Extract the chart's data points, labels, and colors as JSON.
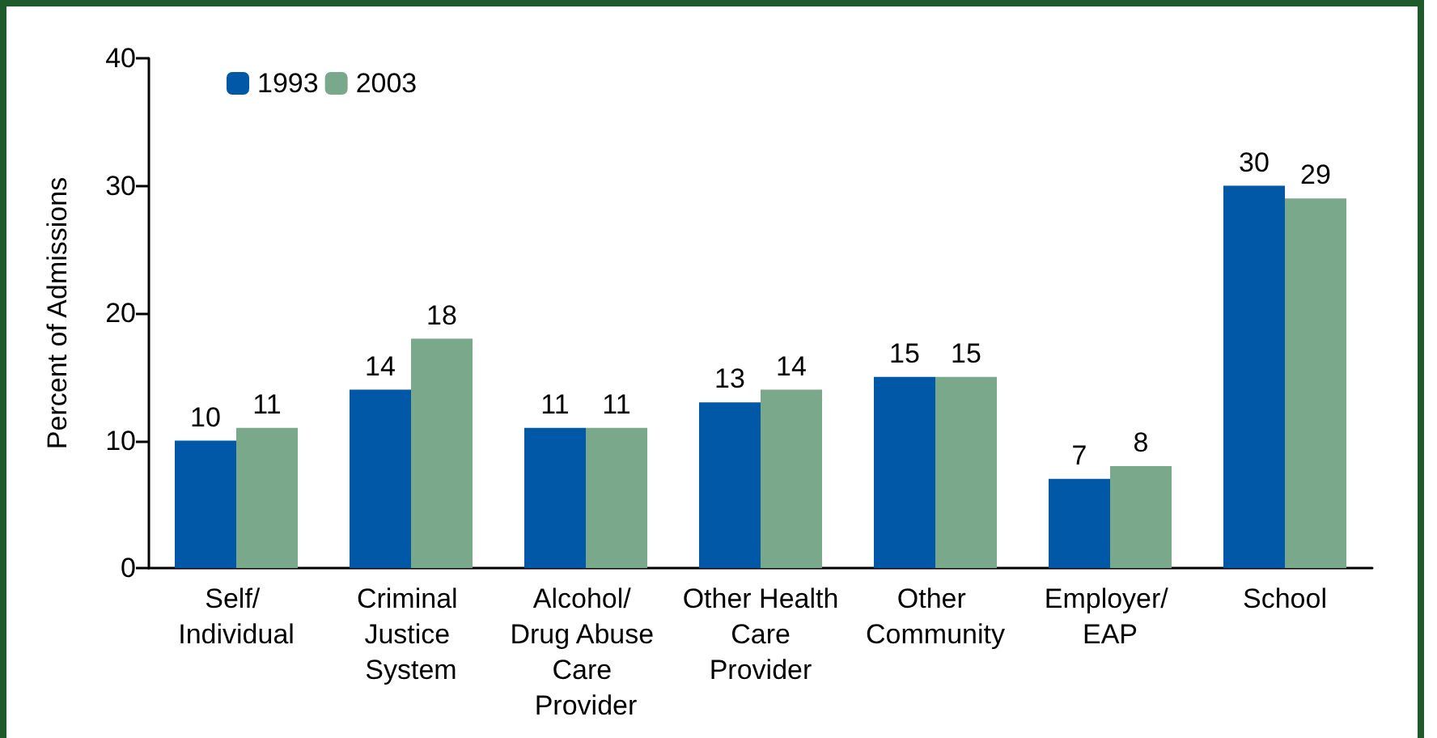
{
  "chart_data": {
    "type": "bar",
    "ylabel": "Percent of Admissions",
    "categories": [
      "Self/ Individual",
      "Criminal Justice System",
      "Alcohol/ Drug Abuse Care Provider",
      "Other Health Care Provider",
      "Other Community",
      "Employer/ EAP",
      "School"
    ],
    "series": [
      {
        "name": "1993",
        "color": "#0058a6",
        "values": [
          10,
          14,
          11,
          13,
          15,
          7,
          30
        ]
      },
      {
        "name": "2003",
        "color": "#7aa88a",
        "values": [
          11,
          18,
          11,
          14,
          15,
          8,
          29
        ]
      }
    ],
    "ylim": [
      0,
      40
    ],
    "yticks": [
      0,
      10,
      20,
      30,
      40
    ],
    "grid": false,
    "legend": "top left",
    "data_labels": true
  }
}
